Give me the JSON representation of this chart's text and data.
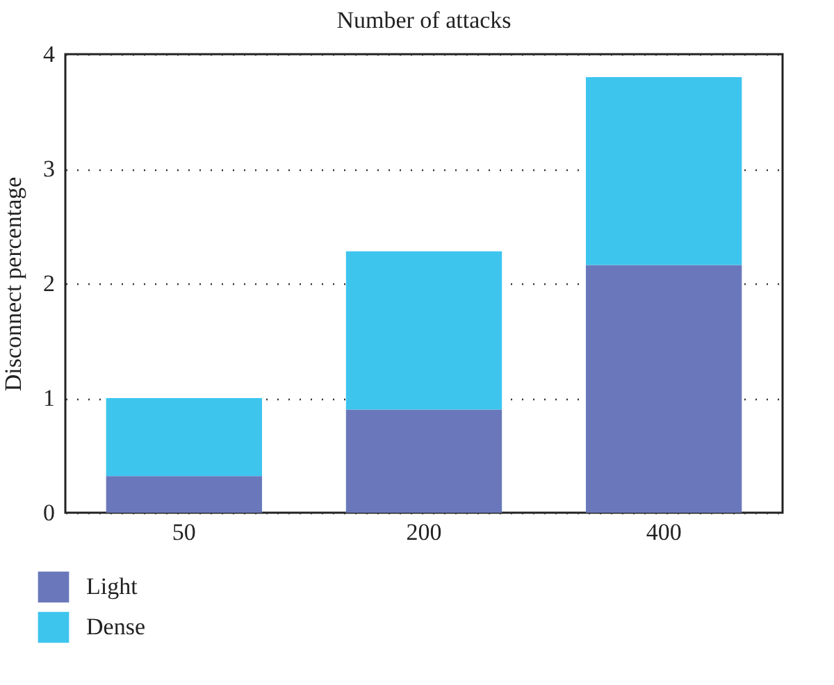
{
  "chart_data": {
    "type": "bar",
    "title": "Number of attacks",
    "ylabel": "Disconnect percentage",
    "categories": [
      "50",
      "200",
      "400"
    ],
    "series": [
      {
        "name": "Light",
        "color": "#6a78bb",
        "values": [
          0.32,
          0.9,
          2.16
        ]
      },
      {
        "name": "Dense",
        "color": "#3dc5ee",
        "values": [
          0.68,
          1.38,
          1.64
        ]
      }
    ],
    "stacked": true,
    "ylim": [
      0,
      4
    ],
    "yticks": [
      0,
      1,
      2,
      3,
      4
    ],
    "grid": "y",
    "legend": "bottom left"
  }
}
